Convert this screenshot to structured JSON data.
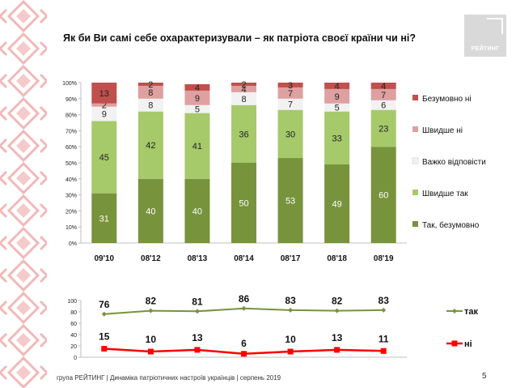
{
  "title": "Як  би Ви самі себе охарактеризували – як патріота своєї країни чи ні?",
  "logo_text": "РЕЙТИНГ",
  "footer": "група РЕЙТИНГ | Динаміка патріотичних настроїв українців | серпень  2019",
  "page_number": "5",
  "colors": {
    "bezumovno_ni": "#c0504d",
    "shvydshe_ni": "#dea0a0",
    "vazhko": "#f2f2f2",
    "shvydshe_tak": "#a6c96a",
    "tak_bezumovno": "#77933c",
    "tak_line": "#77933c",
    "ni_line": "#ff0000"
  },
  "chart_data": [
    {
      "type": "bar",
      "stacked": true,
      "percent": true,
      "categories": [
        "09'10",
        "08'12",
        "08'13",
        "08'14",
        "08'17",
        "08'18",
        "08'19"
      ],
      "y_ticks": [
        "0%",
        "10%",
        "20%",
        "30%",
        "40%",
        "50%",
        "60%",
        "70%",
        "80%",
        "90%",
        "100%"
      ],
      "ylim": [
        0,
        100
      ],
      "legend_position": "right",
      "series": [
        {
          "name": "Так, безумовно",
          "values": [
            31,
            40,
            40,
            50,
            53,
            49,
            60
          ]
        },
        {
          "name": "Швидше так",
          "values": [
            45,
            42,
            41,
            36,
            30,
            33,
            23
          ]
        },
        {
          "name": "Важко відповісти",
          "values": [
            9,
            8,
            5,
            8,
            7,
            5,
            6
          ]
        },
        {
          "name": "Швидше ні",
          "values": [
            2,
            8,
            9,
            4,
            7,
            9,
            7
          ]
        },
        {
          "name": "Безумовно ні",
          "values": [
            13,
            2,
            4,
            2,
            3,
            4,
            4
          ]
        }
      ]
    },
    {
      "type": "line",
      "categories": [
        "09'10",
        "08'12",
        "08'13",
        "08'14",
        "08'17",
        "08'18",
        "08'19"
      ],
      "y_ticks": [
        "0",
        "20",
        "40",
        "60",
        "80",
        "100"
      ],
      "ylim": [
        0,
        100
      ],
      "legend_position": "right",
      "series": [
        {
          "name": "так",
          "values": [
            76,
            82,
            81,
            86,
            83,
            82,
            83
          ]
        },
        {
          "name": "ні",
          "values": [
            15,
            10,
            13,
            6,
            10,
            13,
            11
          ]
        }
      ]
    }
  ]
}
